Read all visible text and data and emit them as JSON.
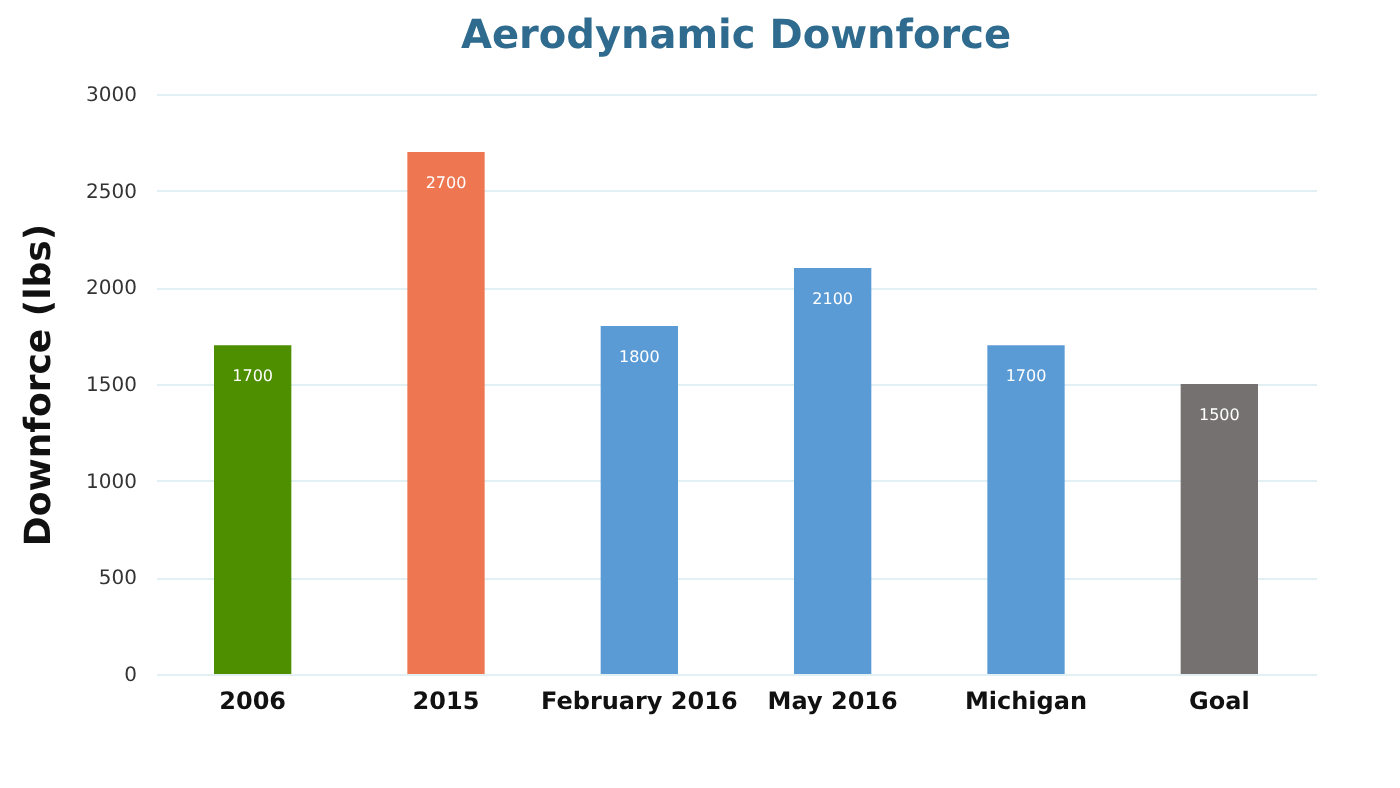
{
  "chart_data": {
    "type": "bar",
    "title": "Aerodynamic Downforce",
    "ylabel": "Downforce (lbs)",
    "categories": [
      "2006",
      "2015",
      "February 2016",
      "May 2016",
      "Michigan",
      "Goal"
    ],
    "values": [
      1700,
      2700,
      1800,
      2100,
      1700,
      1500
    ],
    "colors": [
      "#4e8f00",
      "#ee7752",
      "#5b9bd5",
      "#5b9bd5",
      "#5b9bd5",
      "#767171"
    ],
    "ylim": [
      0,
      3000
    ],
    "yticks": [
      0,
      500,
      1000,
      1500,
      2000,
      2500,
      3000
    ],
    "grid": "y",
    "data_labels": true
  }
}
